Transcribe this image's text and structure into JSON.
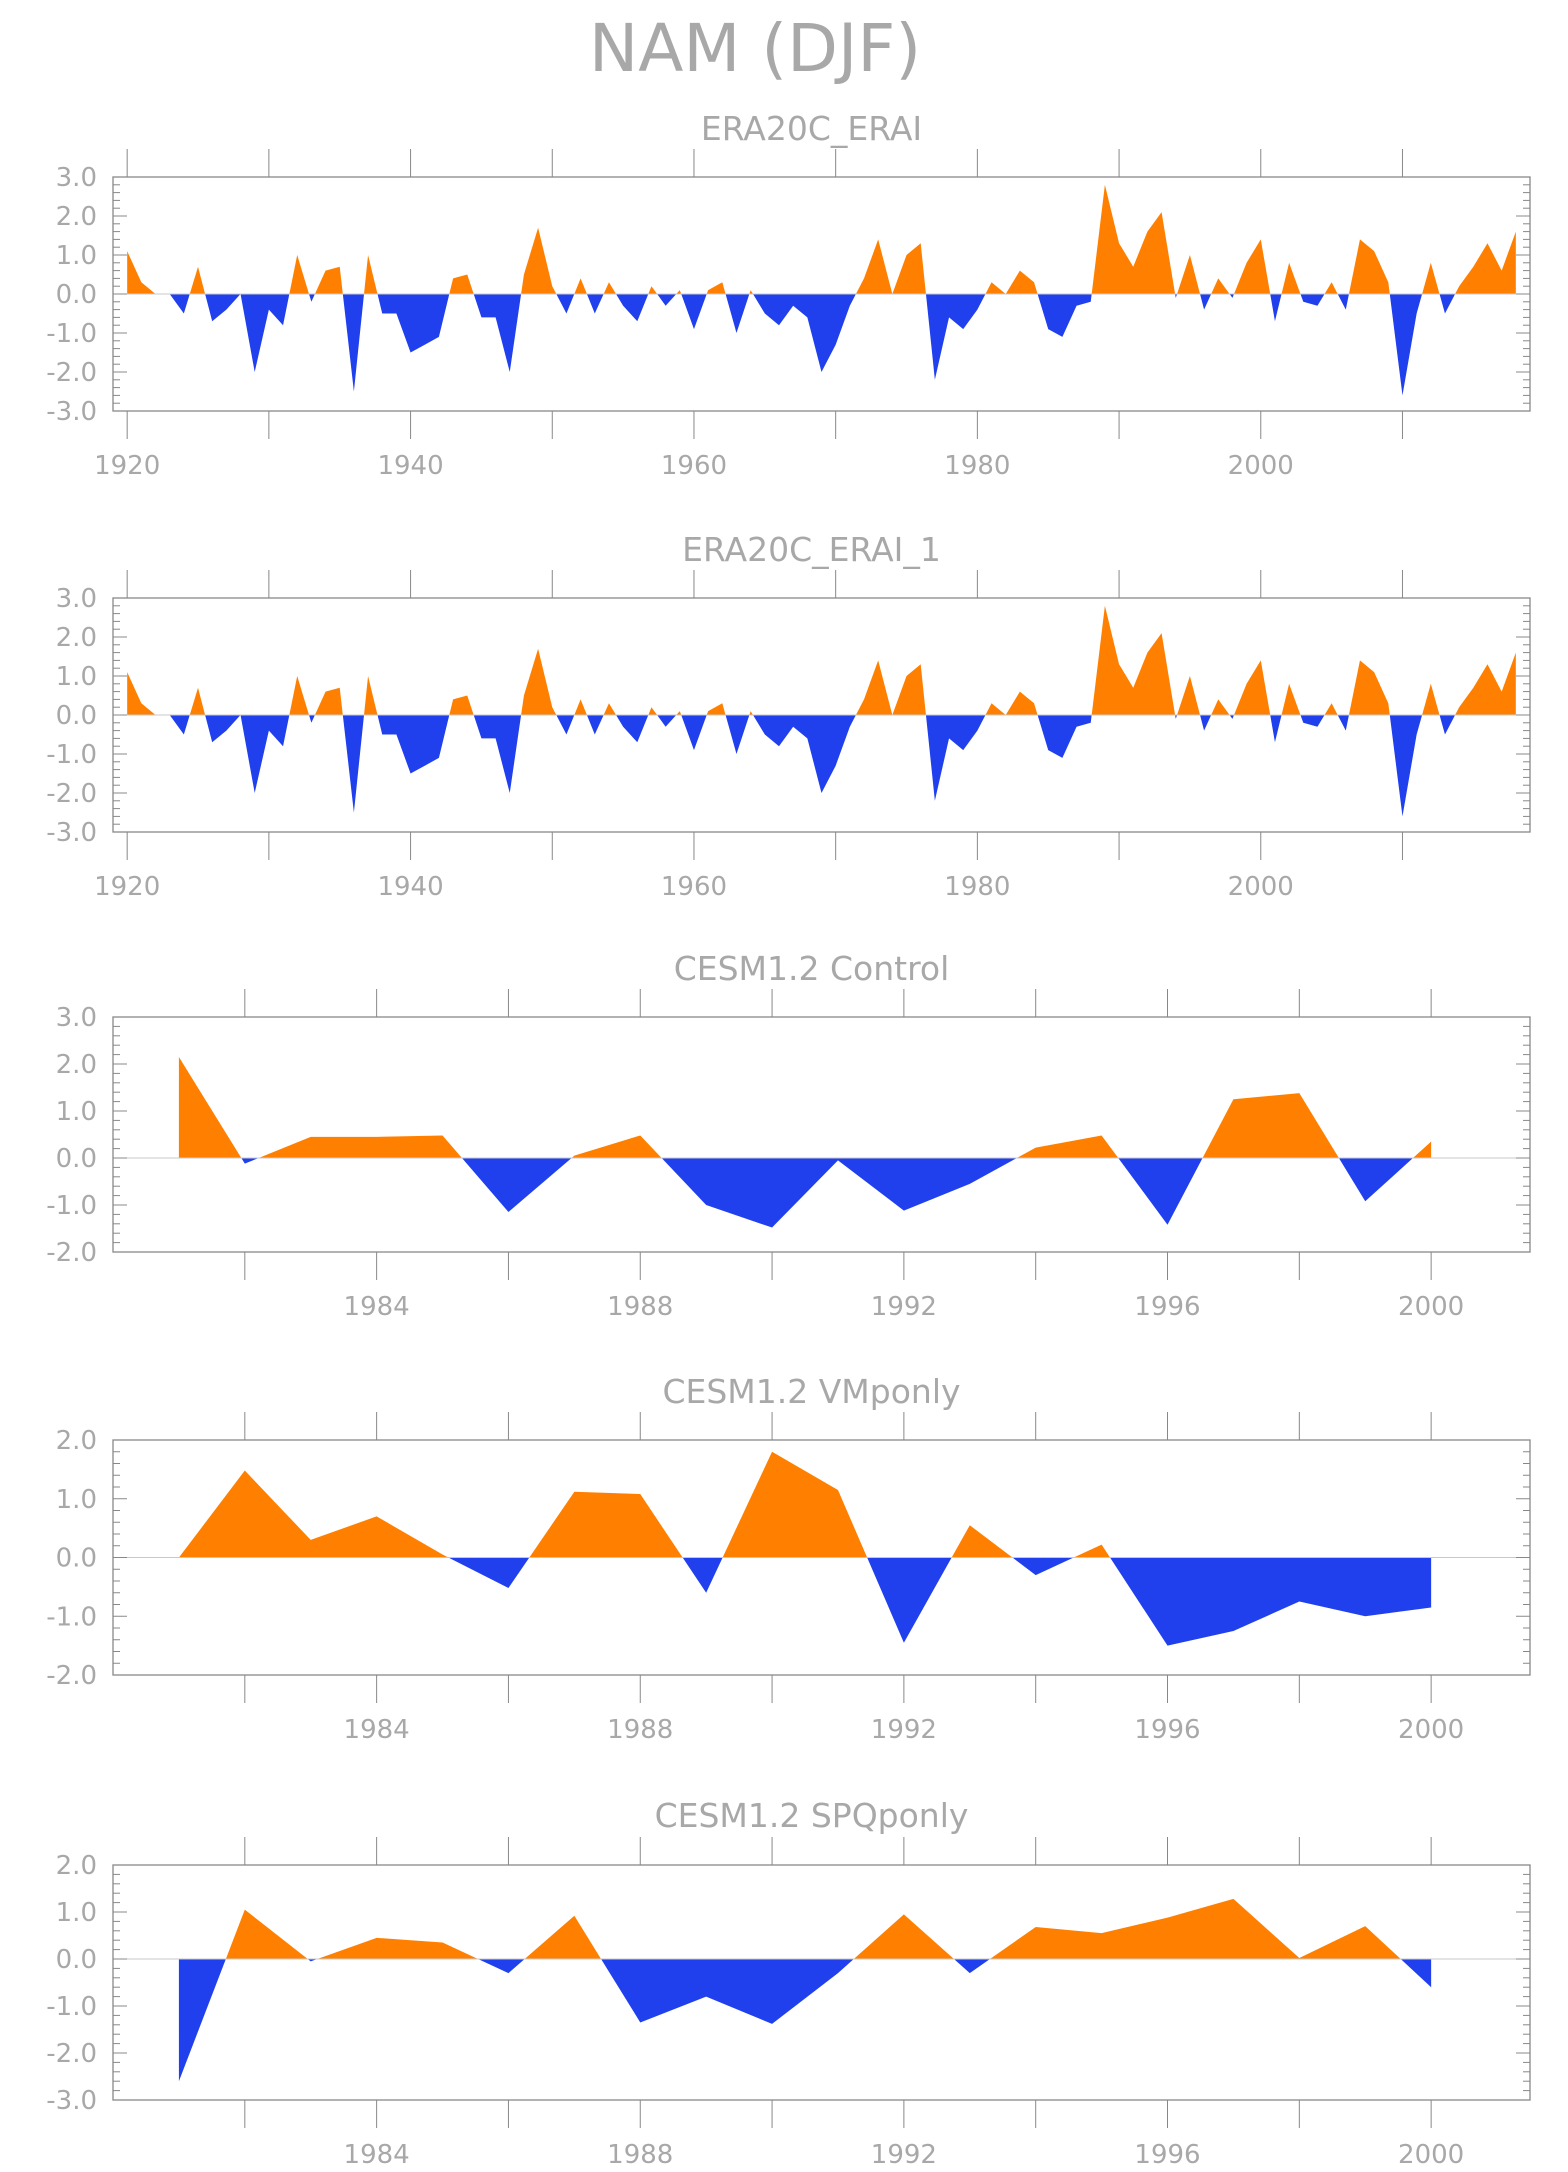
{
  "title": "NAM (DJF)",
  "colors": {
    "positive": "#ff8000",
    "negative": "#2040ee",
    "axis": "#888888",
    "text": "#a8a8a8"
  },
  "chart_data": [
    {
      "type": "area",
      "title": "ERA20C_ERAI",
      "x_range": [
        1919,
        2019
      ],
      "ylim": [
        -3.0,
        3.0
      ],
      "yticks": [
        3.0,
        2.0,
        1.0,
        0.0,
        -1.0,
        -2.0,
        -3.0
      ],
      "ytick_labels": [
        "3.0",
        "2.0",
        "1.0",
        "0.0",
        "-1.0",
        "-2.0",
        "-3.0"
      ],
      "xticks": [
        1920,
        1940,
        1960,
        1980,
        2000
      ],
      "xtick_labels": [
        "1920",
        "1940",
        "1960",
        "1980",
        "2000"
      ],
      "x": [
        1920,
        1921,
        1922,
        1923,
        1924,
        1925,
        1926,
        1927,
        1928,
        1929,
        1930,
        1931,
        1932,
        1933,
        1934,
        1935,
        1936,
        1937,
        1938,
        1939,
        1940,
        1941,
        1942,
        1943,
        1944,
        1945,
        1946,
        1947,
        1948,
        1949,
        1950,
        1951,
        1952,
        1953,
        1954,
        1955,
        1956,
        1957,
        1958,
        1959,
        1960,
        1961,
        1962,
        1963,
        1964,
        1965,
        1966,
        1967,
        1968,
        1969,
        1970,
        1971,
        1972,
        1973,
        1974,
        1975,
        1976,
        1977,
        1978,
        1979,
        1980,
        1981,
        1982,
        1983,
        1984,
        1985,
        1986,
        1987,
        1988,
        1989,
        1990,
        1991,
        1992,
        1993,
        1994,
        1995,
        1996,
        1997,
        1998,
        1999,
        2000,
        2001,
        2002,
        2003,
        2004,
        2005,
        2006,
        2007,
        2008,
        2009,
        2010,
        2011,
        2012,
        2013,
        2014,
        2015,
        2016,
        2017,
        2018
      ],
      "values": [
        1.1,
        0.3,
        0.0,
        0.0,
        -0.5,
        0.7,
        -0.7,
        -0.4,
        0.0,
        -2.0,
        -0.4,
        -0.8,
        1.0,
        -0.2,
        0.6,
        0.7,
        -2.5,
        1.0,
        -0.5,
        -0.5,
        -1.5,
        -1.3,
        -1.1,
        0.4,
        0.5,
        -0.6,
        -0.6,
        -2.0,
        0.5,
        1.7,
        0.2,
        -0.5,
        0.4,
        -0.5,
        0.3,
        -0.3,
        -0.7,
        0.2,
        -0.3,
        0.1,
        -0.9,
        0.1,
        0.3,
        -1.0,
        0.1,
        -0.5,
        -0.8,
        -0.3,
        -0.6,
        -2.0,
        -1.3,
        -0.3,
        0.4,
        1.4,
        0.0,
        1.0,
        1.3,
        -2.2,
        -0.6,
        -0.9,
        -0.4,
        0.3,
        0.0,
        0.6,
        0.3,
        -0.9,
        -1.1,
        -0.3,
        -0.2,
        2.8,
        1.3,
        0.7,
        1.6,
        2.1,
        -0.1,
        1.0,
        -0.4,
        0.4,
        -0.1,
        0.8,
        1.4,
        -0.7,
        0.8,
        -0.2,
        -0.3,
        0.3,
        -0.4,
        1.4,
        1.1,
        0.3,
        -2.6,
        -0.5,
        0.8,
        -0.5,
        0.2,
        0.7,
        1.3,
        0.6,
        1.6
      ]
    },
    {
      "type": "area",
      "title": "ERA20C_ERAI_1",
      "x_range": [
        1919,
        2019
      ],
      "ylim": [
        -3.0,
        3.0
      ],
      "yticks": [
        3.0,
        2.0,
        1.0,
        0.0,
        -1.0,
        -2.0,
        -3.0
      ],
      "ytick_labels": [
        "3.0",
        "2.0",
        "1.0",
        "0.0",
        "-1.0",
        "-2.0",
        "-3.0"
      ],
      "xticks": [
        1920,
        1940,
        1960,
        1980,
        2000
      ],
      "xtick_labels": [
        "1920",
        "1940",
        "1960",
        "1980",
        "2000"
      ],
      "x": [
        1920,
        1921,
        1922,
        1923,
        1924,
        1925,
        1926,
        1927,
        1928,
        1929,
        1930,
        1931,
        1932,
        1933,
        1934,
        1935,
        1936,
        1937,
        1938,
        1939,
        1940,
        1941,
        1942,
        1943,
        1944,
        1945,
        1946,
        1947,
        1948,
        1949,
        1950,
        1951,
        1952,
        1953,
        1954,
        1955,
        1956,
        1957,
        1958,
        1959,
        1960,
        1961,
        1962,
        1963,
        1964,
        1965,
        1966,
        1967,
        1968,
        1969,
        1970,
        1971,
        1972,
        1973,
        1974,
        1975,
        1976,
        1977,
        1978,
        1979,
        1980,
        1981,
        1982,
        1983,
        1984,
        1985,
        1986,
        1987,
        1988,
        1989,
        1990,
        1991,
        1992,
        1993,
        1994,
        1995,
        1996,
        1997,
        1998,
        1999,
        2000,
        2001,
        2002,
        2003,
        2004,
        2005,
        2006,
        2007,
        2008,
        2009,
        2010,
        2011,
        2012,
        2013,
        2014,
        2015,
        2016,
        2017,
        2018
      ],
      "values": [
        1.1,
        0.3,
        0.0,
        0.0,
        -0.5,
        0.7,
        -0.7,
        -0.4,
        0.0,
        -2.0,
        -0.4,
        -0.8,
        1.0,
        -0.2,
        0.6,
        0.7,
        -2.5,
        1.0,
        -0.5,
        -0.5,
        -1.5,
        -1.3,
        -1.1,
        0.4,
        0.5,
        -0.6,
        -0.6,
        -2.0,
        0.5,
        1.7,
        0.2,
        -0.5,
        0.4,
        -0.5,
        0.3,
        -0.3,
        -0.7,
        0.2,
        -0.3,
        0.1,
        -0.9,
        0.1,
        0.3,
        -1.0,
        0.1,
        -0.5,
        -0.8,
        -0.3,
        -0.6,
        -2.0,
        -1.3,
        -0.3,
        0.4,
        1.4,
        0.0,
        1.0,
        1.3,
        -2.2,
        -0.6,
        -0.9,
        -0.4,
        0.3,
        0.0,
        0.6,
        0.3,
        -0.9,
        -1.1,
        -0.3,
        -0.2,
        2.8,
        1.3,
        0.7,
        1.6,
        2.1,
        -0.1,
        1.0,
        -0.4,
        0.4,
        -0.1,
        0.8,
        1.4,
        -0.7,
        0.8,
        -0.2,
        -0.3,
        0.3,
        -0.4,
        1.4,
        1.1,
        0.3,
        -2.6,
        -0.5,
        0.8,
        -0.5,
        0.2,
        0.7,
        1.3,
        0.6,
        1.6
      ]
    },
    {
      "type": "area",
      "title": "CESM1.2 Control",
      "x_range": [
        1980,
        2001.5
      ],
      "ylim": [
        -2.0,
        3.0
      ],
      "yticks": [
        3.0,
        2.0,
        1.0,
        0.0,
        -1.0,
        -2.0
      ],
      "ytick_labels": [
        "3.0",
        "2.0",
        "1.0",
        "0.0",
        "-1.0",
        "-2.0"
      ],
      "xticks": [
        1984,
        1988,
        1992,
        1996,
        2000
      ],
      "xtick_labels": [
        "1984",
        "1988",
        "1992",
        "1996",
        "2000"
      ],
      "x": [
        1981,
        1982,
        1983,
        1984,
        1985,
        1986,
        1987,
        1988,
        1989,
        1990,
        1991,
        1992,
        1993,
        1994,
        1995,
        1996,
        1997,
        1998,
        1999,
        2000
      ],
      "values": [
        2.15,
        -0.12,
        0.45,
        0.45,
        0.48,
        -1.15,
        0.05,
        0.48,
        -1.0,
        -1.48,
        -0.05,
        -1.12,
        -0.55,
        0.22,
        0.48,
        -1.42,
        1.25,
        1.38,
        -0.92,
        0.35
      ]
    },
    {
      "type": "area",
      "title": "CESM1.2 VMponly",
      "x_range": [
        1980,
        2001.5
      ],
      "ylim": [
        -2.0,
        2.0
      ],
      "yticks": [
        2.0,
        1.0,
        0.0,
        -1.0,
        -2.0
      ],
      "ytick_labels": [
        "2.0",
        "1.0",
        "0.0",
        "-1.0",
        "-2.0"
      ],
      "xticks": [
        1984,
        1988,
        1992,
        1996,
        2000
      ],
      "xtick_labels": [
        "1984",
        "1988",
        "1992",
        "1996",
        "2000"
      ],
      "x": [
        1981,
        1982,
        1983,
        1984,
        1985,
        1986,
        1987,
        1988,
        1989,
        1990,
        1991,
        1992,
        1993,
        1994,
        1995,
        1996,
        1997,
        1998,
        1999,
        2000
      ],
      "values": [
        0.0,
        1.48,
        0.3,
        0.7,
        0.05,
        -0.52,
        1.12,
        1.08,
        -0.6,
        1.8,
        1.15,
        -1.45,
        0.55,
        -0.3,
        0.22,
        -1.5,
        -1.25,
        -0.75,
        -1.0,
        -0.85
      ]
    },
    {
      "type": "area",
      "title": "CESM1.2 SPQponly",
      "x_range": [
        1980,
        2001.5
      ],
      "ylim": [
        -3.0,
        2.0
      ],
      "yticks": [
        2.0,
        1.0,
        0.0,
        -1.0,
        -2.0,
        -3.0
      ],
      "ytick_labels": [
        "2.0",
        "1.0",
        "0.0",
        "-1.0",
        "-2.0",
        "-3.0"
      ],
      "xticks": [
        1984,
        1988,
        1992,
        1996,
        2000
      ],
      "xtick_labels": [
        "1984",
        "1988",
        "1992",
        "1996",
        "2000"
      ],
      "x": [
        1981,
        1982,
        1983,
        1984,
        1985,
        1986,
        1987,
        1988,
        1989,
        1990,
        1991,
        1992,
        1993,
        1994,
        1995,
        1996,
        1997,
        1998,
        1999,
        2000
      ],
      "values": [
        -2.6,
        1.05,
        -0.05,
        0.45,
        0.35,
        -0.3,
        0.92,
        -1.35,
        -0.8,
        -1.38,
        -0.3,
        0.95,
        -0.3,
        0.68,
        0.55,
        0.88,
        1.28,
        0.02,
        0.7,
        -0.6
      ]
    }
  ]
}
